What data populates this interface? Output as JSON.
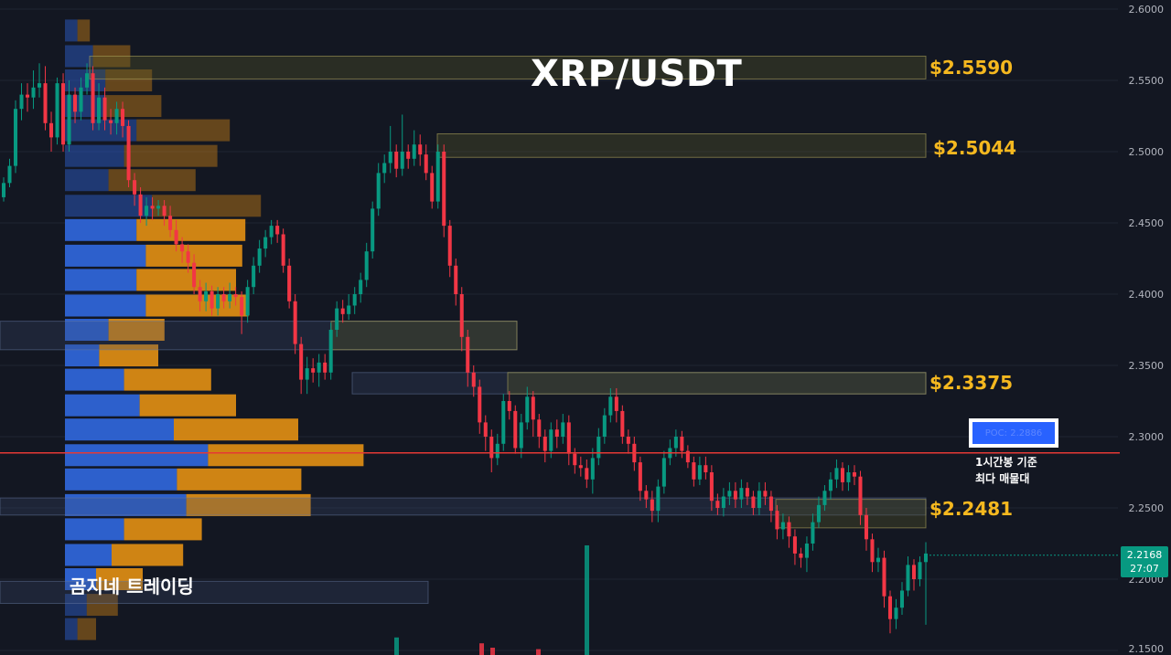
{
  "chart_data": {
    "type": "candlestick",
    "title": "XRP/USDT",
    "y_axis": {
      "min": 2.15,
      "max": 2.6,
      "ticks": [
        "2.6000",
        "2.5500",
        "2.5000",
        "2.4500",
        "2.4000",
        "2.3500",
        "2.3000",
        "2.2500",
        "2.2000",
        "2.1500"
      ],
      "position": "right"
    },
    "key_levels": [
      {
        "label": "$2.5590",
        "price": 2.559
      },
      {
        "label": "$2.5044",
        "price": 2.5044
      },
      {
        "label": "$2.3375",
        "price": 2.3375
      },
      {
        "label": "$2.2481",
        "price": 2.2481
      }
    ],
    "poc": {
      "label": "POC: 2.2886",
      "price": 2.2886,
      "note": "1시간봉 기준\n최다 매물대",
      "line_color": "#e53935"
    },
    "current_price": {
      "price": "2.2168",
      "countdown": "27:07",
      "color": "#089981"
    },
    "volume_profile": {
      "price_bins": [
        2.585,
        2.567,
        2.55,
        2.532,
        2.515,
        2.497,
        2.48,
        2.462,
        2.445,
        2.427,
        2.41,
        2.392,
        2.375,
        2.357,
        2.34,
        2.322,
        2.305,
        2.287,
        2.27,
        2.252,
        2.235,
        2.217,
        2.2,
        2.182,
        2.165
      ],
      "buy_volume": [
        4,
        9,
        13,
        13,
        23,
        19,
        14,
        28,
        23,
        26,
        23,
        26,
        14,
        11,
        19,
        24,
        35,
        46,
        36,
        39,
        19,
        15,
        10,
        7,
        4
      ],
      "sell_volume": [
        4,
        12,
        15,
        18,
        30,
        30,
        28,
        35,
        35,
        31,
        32,
        33,
        18,
        19,
        28,
        31,
        40,
        50,
        40,
        40,
        25,
        23,
        15,
        10,
        6
      ]
    },
    "candles": [
      [
        2.468,
        2.478,
        2.465,
        2.482
      ],
      [
        2.478,
        2.49,
        2.475,
        2.495
      ],
      [
        2.49,
        2.53,
        2.485,
        2.536
      ],
      [
        2.53,
        2.54,
        2.522,
        2.548
      ],
      [
        2.54,
        2.538,
        2.528,
        2.548
      ],
      [
        2.538,
        2.545,
        2.53,
        2.557
      ],
      [
        2.545,
        2.548,
        2.538,
        2.562
      ],
      [
        2.548,
        2.52,
        2.515,
        2.56
      ],
      [
        2.52,
        2.51,
        2.5,
        2.528
      ],
      [
        2.51,
        2.548,
        2.505,
        2.552
      ],
      [
        2.548,
        2.505,
        2.5,
        2.555
      ],
      [
        2.505,
        2.54,
        2.5,
        2.55
      ],
      [
        2.54,
        2.528,
        2.52,
        2.545
      ],
      [
        2.528,
        2.545,
        2.522,
        2.552
      ],
      [
        2.545,
        2.555,
        2.54,
        2.562
      ],
      [
        2.555,
        2.52,
        2.515,
        2.56
      ],
      [
        2.52,
        2.538,
        2.515,
        2.548
      ],
      [
        2.538,
        2.522,
        2.515,
        2.545
      ],
      [
        2.522,
        2.52,
        2.512,
        2.53
      ],
      [
        2.52,
        2.53,
        2.512,
        2.535
      ],
      [
        2.53,
        2.518,
        2.51,
        2.535
      ],
      [
        2.518,
        2.48,
        2.475,
        2.522
      ],
      [
        2.48,
        2.47,
        2.462,
        2.485
      ],
      [
        2.47,
        2.455,
        2.45,
        2.475
      ],
      [
        2.455,
        2.462,
        2.448,
        2.468
      ],
      [
        2.462,
        2.46,
        2.452,
        2.468
      ],
      [
        2.46,
        2.462,
        2.455,
        2.466
      ],
      [
        2.462,
        2.455,
        2.448,
        2.466
      ],
      [
        2.455,
        2.445,
        2.44,
        2.462
      ],
      [
        2.445,
        2.435,
        2.43,
        2.452
      ],
      [
        2.435,
        2.43,
        2.422,
        2.44
      ],
      [
        2.43,
        2.422,
        2.415,
        2.435
      ],
      [
        2.422,
        2.405,
        2.4,
        2.428
      ],
      [
        2.405,
        2.395,
        2.388,
        2.41
      ],
      [
        2.395,
        2.402,
        2.388,
        2.408
      ],
      [
        2.402,
        2.39,
        2.385,
        2.406
      ],
      [
        2.39,
        2.4,
        2.385,
        2.405
      ],
      [
        2.4,
        2.395,
        2.39,
        2.405
      ],
      [
        2.395,
        2.4,
        2.39,
        2.408
      ],
      [
        2.4,
        2.398,
        2.392,
        2.405
      ],
      [
        2.398,
        2.385,
        2.372,
        2.402
      ],
      [
        2.385,
        2.405,
        2.38,
        2.41
      ],
      [
        2.405,
        2.42,
        2.4,
        2.426
      ],
      [
        2.42,
        2.432,
        2.415,
        2.438
      ],
      [
        2.432,
        2.44,
        2.426,
        2.445
      ],
      [
        2.44,
        2.448,
        2.435,
        2.452
      ],
      [
        2.448,
        2.442,
        2.436,
        2.452
      ],
      [
        2.442,
        2.42,
        2.415,
        2.446
      ],
      [
        2.42,
        2.395,
        2.39,
        2.425
      ],
      [
        2.395,
        2.365,
        2.358,
        2.4
      ],
      [
        2.365,
        2.34,
        2.33,
        2.37
      ],
      [
        2.34,
        2.348,
        2.33,
        2.356
      ],
      [
        2.348,
        2.345,
        2.338,
        2.355
      ],
      [
        2.345,
        2.352,
        2.335,
        2.358
      ],
      [
        2.352,
        2.345,
        2.34,
        2.358
      ],
      [
        2.345,
        2.375,
        2.34,
        2.38
      ],
      [
        2.375,
        2.39,
        2.37,
        2.395
      ],
      [
        2.39,
        2.386,
        2.38,
        2.396
      ],
      [
        2.386,
        2.392,
        2.382,
        2.4
      ],
      [
        2.392,
        2.4,
        2.386,
        2.405
      ],
      [
        2.4,
        2.41,
        2.394,
        2.415
      ],
      [
        2.41,
        2.43,
        2.405,
        2.436
      ],
      [
        2.43,
        2.46,
        2.425,
        2.465
      ],
      [
        2.46,
        2.485,
        2.455,
        2.492
      ],
      [
        2.485,
        2.492,
        2.478,
        2.498
      ],
      [
        2.492,
        2.5,
        2.485,
        2.518
      ],
      [
        2.5,
        2.488,
        2.482,
        2.505
      ],
      [
        2.488,
        2.5,
        2.483,
        2.526
      ],
      [
        2.5,
        2.495,
        2.488,
        2.505
      ],
      [
        2.495,
        2.505,
        2.49,
        2.515
      ],
      [
        2.505,
        2.498,
        2.49,
        2.512
      ],
      [
        2.498,
        2.485,
        2.48,
        2.505
      ],
      [
        2.485,
        2.465,
        2.46,
        2.49
      ],
      [
        2.465,
        2.5,
        2.46,
        2.505
      ],
      [
        2.5,
        2.448,
        2.44,
        2.505
      ],
      [
        2.448,
        2.42,
        2.412,
        2.452
      ],
      [
        2.42,
        2.4,
        2.392,
        2.425
      ],
      [
        2.4,
        2.37,
        2.36,
        2.405
      ],
      [
        2.37,
        2.345,
        2.335,
        2.375
      ],
      [
        2.345,
        2.335,
        2.328,
        2.35
      ],
      [
        2.335,
        2.31,
        2.302,
        2.34
      ],
      [
        2.31,
        2.3,
        2.29,
        2.315
      ],
      [
        2.3,
        2.285,
        2.275,
        2.305
      ],
      [
        2.285,
        2.295,
        2.28,
        2.302
      ],
      [
        2.295,
        2.325,
        2.29,
        2.33
      ],
      [
        2.325,
        2.318,
        2.312,
        2.332
      ],
      [
        2.318,
        2.292,
        2.288,
        2.322
      ],
      [
        2.292,
        2.31,
        2.285,
        2.316
      ],
      [
        2.31,
        2.328,
        2.305,
        2.335
      ],
      [
        2.328,
        2.312,
        2.3,
        2.332
      ],
      [
        2.312,
        2.3,
        2.292,
        2.316
      ],
      [
        2.3,
        2.29,
        2.282,
        2.305
      ],
      [
        2.29,
        2.305,
        2.285,
        2.31
      ],
      [
        2.305,
        2.3,
        2.292,
        2.312
      ],
      [
        2.3,
        2.31,
        2.295,
        2.316
      ],
      [
        2.31,
        2.288,
        2.28,
        2.315
      ],
      [
        2.288,
        2.28,
        2.274,
        2.292
      ],
      [
        2.28,
        2.278,
        2.272,
        2.286
      ],
      [
        2.278,
        2.27,
        2.264,
        2.284
      ],
      [
        2.27,
        2.285,
        2.26,
        2.292
      ],
      [
        2.285,
        2.3,
        2.28,
        2.306
      ],
      [
        2.3,
        2.315,
        2.295,
        2.32
      ],
      [
        2.315,
        2.328,
        2.31,
        2.334
      ],
      [
        2.328,
        2.318,
        2.31,
        2.334
      ],
      [
        2.318,
        2.3,
        2.295,
        2.322
      ],
      [
        2.3,
        2.295,
        2.288,
        2.305
      ],
      [
        2.295,
        2.282,
        2.276,
        2.3
      ],
      [
        2.282,
        2.262,
        2.255,
        2.286
      ],
      [
        2.262,
        2.256,
        2.25,
        2.266
      ],
      [
        2.256,
        2.248,
        2.24,
        2.262
      ],
      [
        2.248,
        2.265,
        2.24,
        2.27
      ],
      [
        2.265,
        2.285,
        2.26,
        2.29
      ],
      [
        2.285,
        2.292,
        2.28,
        2.298
      ],
      [
        2.292,
        2.3,
        2.286,
        2.305
      ],
      [
        2.3,
        2.29,
        2.285,
        2.304
      ],
      [
        2.29,
        2.282,
        2.278,
        2.294
      ],
      [
        2.282,
        2.27,
        2.265,
        2.286
      ],
      [
        2.27,
        2.28,
        2.266,
        2.286
      ],
      [
        2.28,
        2.275,
        2.27,
        2.286
      ],
      [
        2.275,
        2.255,
        2.248,
        2.28
      ],
      [
        2.255,
        2.25,
        2.245,
        2.26
      ],
      [
        2.25,
        2.258,
        2.244,
        2.264
      ],
      [
        2.258,
        2.262,
        2.252,
        2.268
      ],
      [
        2.262,
        2.256,
        2.25,
        2.268
      ],
      [
        2.256,
        2.264,
        2.25,
        2.27
      ],
      [
        2.264,
        2.258,
        2.252,
        2.268
      ],
      [
        2.258,
        2.25,
        2.245,
        2.262
      ],
      [
        2.25,
        2.262,
        2.245,
        2.268
      ],
      [
        2.262,
        2.258,
        2.252,
        2.268
      ],
      [
        2.258,
        2.248,
        2.24,
        2.262
      ],
      [
        2.248,
        2.235,
        2.228,
        2.252
      ],
      [
        2.235,
        2.24,
        2.228,
        2.246
      ],
      [
        2.24,
        2.23,
        2.222,
        2.244
      ],
      [
        2.23,
        2.218,
        2.21,
        2.235
      ],
      [
        2.218,
        2.215,
        2.208,
        2.222
      ],
      [
        2.215,
        2.225,
        2.205,
        2.23
      ],
      [
        2.225,
        2.24,
        2.22,
        2.246
      ],
      [
        2.24,
        2.252,
        2.236,
        2.258
      ],
      [
        2.252,
        2.262,
        2.248,
        2.266
      ],
      [
        2.262,
        2.27,
        2.256,
        2.275
      ],
      [
        2.27,
        2.278,
        2.264,
        2.284
      ],
      [
        2.278,
        2.268,
        2.262,
        2.282
      ],
      [
        2.268,
        2.275,
        2.262,
        2.28
      ],
      [
        2.275,
        2.272,
        2.266,
        2.28
      ],
      [
        2.272,
        2.245,
        2.238,
        2.276
      ],
      [
        2.245,
        2.228,
        2.22,
        2.25
      ],
      [
        2.228,
        2.212,
        2.205,
        2.232
      ],
      [
        2.212,
        2.215,
        2.205,
        2.222
      ],
      [
        2.215,
        2.188,
        2.18,
        2.22
      ],
      [
        2.188,
        2.172,
        2.162,
        2.192
      ],
      [
        2.172,
        2.18,
        2.165,
        2.186
      ],
      [
        2.18,
        2.192,
        2.175,
        2.198
      ],
      [
        2.192,
        2.21,
        2.188,
        2.216
      ],
      [
        2.21,
        2.2,
        2.192,
        2.214
      ],
      [
        2.2,
        2.212,
        2.195,
        2.216
      ],
      [
        2.212,
        2.218,
        2.168,
        2.226
      ]
    ],
    "volume": [
      {
        "value": 0.75,
        "dir": "up"
      },
      {
        "value": 0.12,
        "dir": "up"
      },
      {
        "value": 0.08,
        "dir": "down"
      },
      {
        "value": 0.05,
        "dir": "down"
      },
      {
        "value": 0.04,
        "dir": "down"
      }
    ]
  },
  "labels": {
    "brand": "곰지네 트레이딩"
  },
  "colors": {
    "background": "#131722",
    "up": "#089981",
    "down": "#f23645",
    "level": "#f5b81f",
    "buy_volume": "#2e64d6",
    "sell_volume": "#e08e13"
  }
}
